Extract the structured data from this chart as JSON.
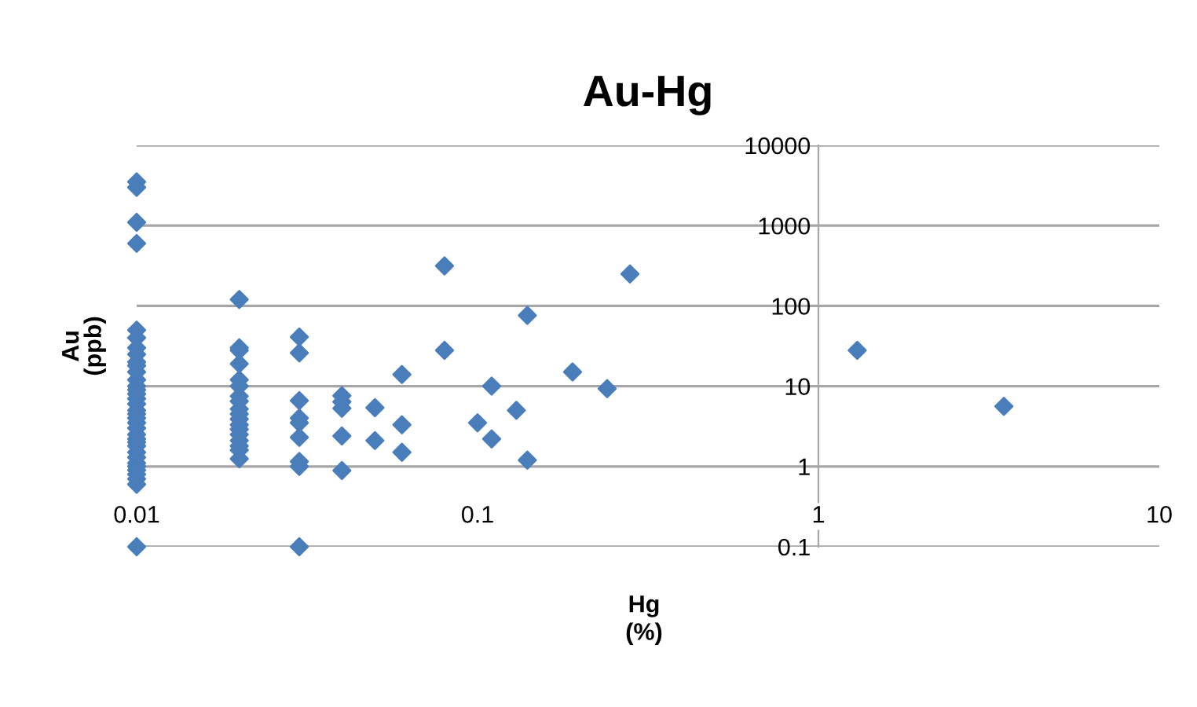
{
  "chart_data": {
    "type": "scatter",
    "title": "Au-Hg",
    "xlabel": "Hg\n(%)",
    "ylabel": "Au\n(ppb)",
    "log": "xy",
    "grid": "y",
    "marker": "diamond",
    "xlim": [
      0.01,
      10
    ],
    "xticks": [
      0.01,
      0.1,
      1,
      10
    ],
    "ylim": [
      0.1,
      10000
    ],
    "yticks": [
      0.1,
      1,
      10,
      100,
      1000,
      10000
    ],
    "series": [
      {
        "color": "#4a7ebb",
        "x": [
          0.01,
          0.01,
          0.01,
          0.01,
          0.01,
          0.01,
          0.01,
          0.01,
          0.01,
          0.01,
          0.01,
          0.01,
          0.01,
          0.01,
          0.01,
          0.01,
          0.01,
          0.01,
          0.01,
          0.01,
          0.01,
          0.01,
          0.01,
          0.01,
          0.01,
          0.01,
          0.01,
          0.01,
          0.01,
          0.01,
          0.01,
          0.01,
          0.01,
          0.01,
          0.01,
          0.02,
          0.02,
          0.02,
          0.02,
          0.02,
          0.02,
          0.02,
          0.02,
          0.02,
          0.02,
          0.02,
          0.02,
          0.02,
          0.02,
          0.02,
          0.02,
          0.02,
          0.02,
          0.03,
          0.03,
          0.03,
          0.03,
          0.03,
          0.03,
          0.03,
          0.03,
          0.03,
          0.04,
          0.04,
          0.04,
          0.04,
          0.04,
          0.05,
          0.05,
          0.06,
          0.06,
          0.06,
          0.08,
          0.08,
          0.1,
          0.11,
          0.11,
          0.13,
          0.14,
          0.14,
          0.19,
          0.24,
          0.28,
          1.3,
          3.5
        ],
        "values": [
          3500,
          3000,
          1100,
          600,
          50,
          40,
          30,
          25,
          20,
          18,
          15,
          12,
          10,
          9,
          8,
          7,
          6,
          5,
          4.5,
          4,
          3.5,
          3,
          2.5,
          2.2,
          2,
          1.8,
          1.5,
          1.3,
          1.1,
          1,
          0.9,
          0.8,
          0.7,
          0.6,
          0.1,
          120,
          30,
          28,
          19,
          12,
          10,
          7.5,
          6.5,
          5.2,
          4.5,
          3.9,
          3.3,
          2.9,
          2.5,
          2.1,
          1.8,
          1.6,
          1.25,
          41,
          26,
          6.6,
          4,
          3.5,
          2.3,
          1.15,
          1,
          0.1,
          7.6,
          6.4,
          5.3,
          2.4,
          0.89,
          5.4,
          2.1,
          14,
          3.3,
          1.5,
          315,
          28,
          3.5,
          10,
          2.2,
          5,
          76,
          1.2,
          15,
          9.3,
          250,
          28,
          5.6
        ]
      }
    ]
  }
}
